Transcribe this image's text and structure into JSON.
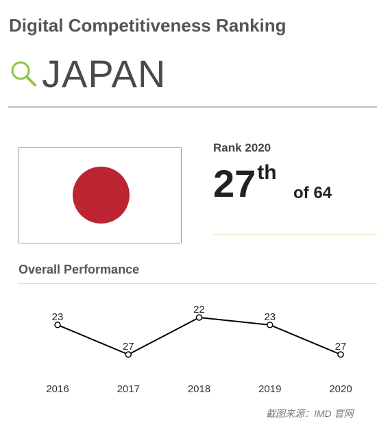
{
  "header": {
    "title": "Digital Competitiveness Ranking",
    "country": "JAPAN",
    "search_icon": "search-icon",
    "accent_color": "#8dc63f"
  },
  "flag": {
    "background_color": "#ffffff",
    "disc_color": "#bc2432"
  },
  "rank": {
    "label": "Rank 2020",
    "number": "27",
    "suffix": "th",
    "total": "of 64"
  },
  "section": {
    "title": "Overall Performance"
  },
  "chart_data": {
    "type": "line",
    "title": "",
    "xlabel": "",
    "ylabel": "",
    "categories": [
      "2016",
      "2017",
      "2018",
      "2019",
      "2020"
    ],
    "series": [
      {
        "values": [
          23,
          27,
          22,
          23,
          27
        ],
        "labels": [
          "23",
          "27",
          "22",
          "23",
          "27"
        ],
        "color": "#000000"
      }
    ],
    "y_inverted": true,
    "grid": false
  },
  "footer": {
    "source": "截图来源：IMD 官网"
  }
}
